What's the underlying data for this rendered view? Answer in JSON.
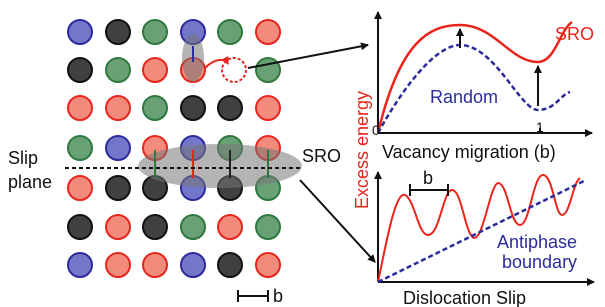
{
  "left_panel": {
    "slip_label": [
      "Slip",
      "plane"
    ],
    "sro_label": "SRO",
    "scale_label": "b"
  },
  "y_axis_label": "Excess energy",
  "top_plot": {
    "sro_label": "SRO",
    "random_label": "Random",
    "origin_label": "0",
    "one_label": "1",
    "x_axis_label": "Vacancy migration (b)"
  },
  "bottom_plot": {
    "b_label": "b",
    "apb_label": [
      "Antiphase",
      "boundary"
    ],
    "x_axis_label": "Dislocation Slip"
  }
}
